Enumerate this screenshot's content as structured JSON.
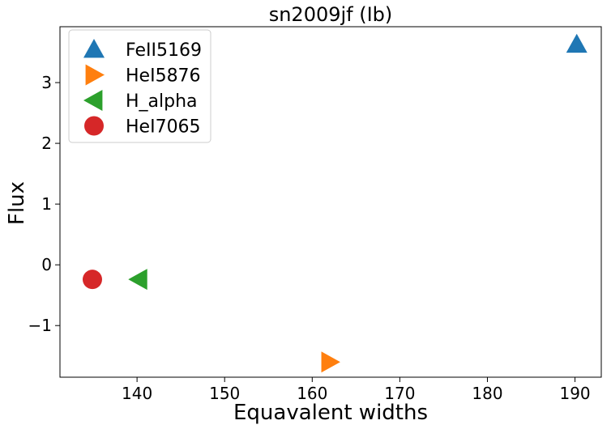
{
  "chart_data": {
    "type": "scatter",
    "title": "sn2009jf (Ib)",
    "xlabel": "Equavalent widths",
    "ylabel": "Flux",
    "xlim": [
      131.2,
      193.0
    ],
    "ylim": [
      -1.85,
      3.92
    ],
    "xticks": [
      140,
      150,
      160,
      170,
      180,
      190
    ],
    "yticks": [
      -1,
      0,
      1,
      2,
      3
    ],
    "grid": false,
    "legend_position": "upper-left",
    "series": [
      {
        "name": "FeII5169",
        "marker": "triangle-up",
        "color": "#1f77b4",
        "points": [
          {
            "x": 190.2,
            "y": 3.63
          }
        ]
      },
      {
        "name": "HeI5876",
        "marker": "triangle-right",
        "color": "#ff7f0e",
        "points": [
          {
            "x": 162.0,
            "y": -1.6
          }
        ]
      },
      {
        "name": "H_alpha",
        "marker": "triangle-left",
        "color": "#2ca02c",
        "points": [
          {
            "x": 140.2,
            "y": -0.24
          }
        ]
      },
      {
        "name": "HeI7065",
        "marker": "circle",
        "color": "#d62728",
        "points": [
          {
            "x": 134.9,
            "y": -0.24
          }
        ]
      }
    ]
  }
}
